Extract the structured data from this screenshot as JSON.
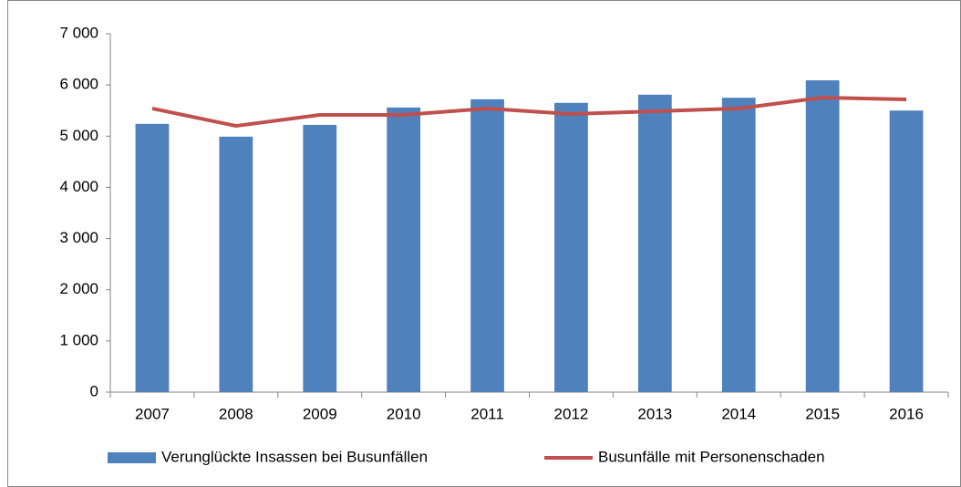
{
  "chart_data": {
    "type": "bar",
    "categories": [
      "2007",
      "2008",
      "2009",
      "2010",
      "2011",
      "2012",
      "2013",
      "2014",
      "2015",
      "2016"
    ],
    "series": [
      {
        "name": "Verunglückte Insassen bei Busunfällen",
        "type": "bar",
        "color": "#4f81bd",
        "values": [
          5240,
          4990,
          5220,
          5560,
          5720,
          5650,
          5810,
          5750,
          6090,
          5500
        ]
      },
      {
        "name": "Busunfälle mit Personenschaden",
        "type": "line",
        "color": "#c0504d",
        "values": [
          5540,
          5200,
          5415,
          5415,
          5540,
          5433,
          5486,
          5540,
          5754,
          5718
        ]
      }
    ],
    "ylim": [
      0,
      7000
    ],
    "yticks": [
      0,
      {
        "value": 1000,
        "label": "1 000"
      },
      {
        "value": 2000,
        "label": "2 000"
      },
      {
        "value": 3000,
        "label": "3 000"
      },
      {
        "value": 4000,
        "label": "4 000"
      },
      {
        "value": 5000,
        "label": "5 000"
      },
      {
        "value": 6000,
        "label": "6 000"
      },
      {
        "value": 7000,
        "label": "7 000"
      }
    ],
    "grid": false,
    "legend": "bottom"
  }
}
